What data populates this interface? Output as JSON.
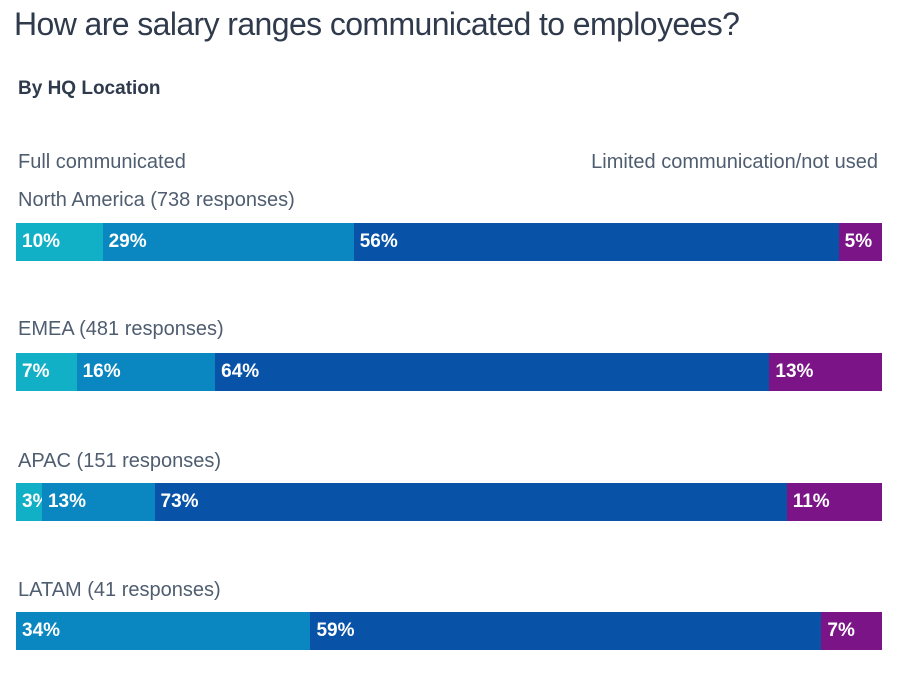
{
  "title": "How are salary ranges communicated to employees?",
  "subtitle": "By HQ Location",
  "scale": {
    "left_label": "Full communicated",
    "right_label": "Limited communication/not used"
  },
  "colors": {
    "c1": "#12b0c6",
    "c2": "#0a87c0",
    "c3": "#0853a8",
    "c4": "#7a1487"
  },
  "chart_data": {
    "type": "bar",
    "orientation": "horizontal",
    "stacked": true,
    "title": "How are salary ranges communicated to employees?",
    "subtitle": "By HQ Location",
    "categories": [
      "North America (738 responses)",
      "EMEA (481 responses)",
      "APAC (151 responses)",
      "LATAM (41 responses)"
    ],
    "rows": [
      {
        "values": [
          10,
          29,
          56,
          5
        ],
        "labels": [
          "10%",
          "29%",
          "56%",
          "5%"
        ]
      },
      {
        "values": [
          7,
          16,
          64,
          13
        ],
        "labels": [
          "7%",
          "16%",
          "64%",
          "13%"
        ]
      },
      {
        "values": [
          3,
          13,
          73,
          11
        ],
        "labels": [
          "3%",
          "13%",
          "73%",
          "11%"
        ]
      },
      {
        "values": [
          0,
          34,
          59,
          7
        ],
        "labels": [
          "",
          "34%",
          "59%",
          "7%"
        ]
      }
    ],
    "xlim": [
      0,
      100
    ]
  }
}
